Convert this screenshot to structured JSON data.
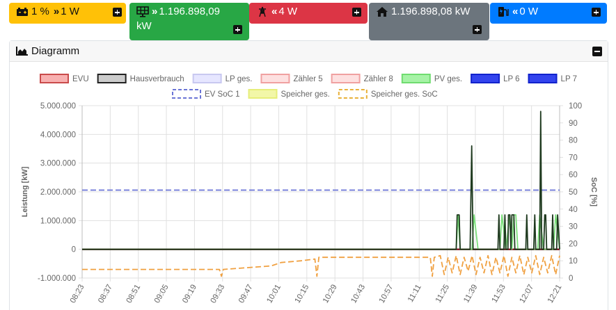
{
  "tiles": {
    "battery": {
      "percent": "1 %",
      "arrow": "»",
      "power": "1 W",
      "icon": "battery-icon",
      "color": "#ffc107"
    },
    "pv": {
      "arrow": "»",
      "line1": "1.196.898,09",
      "line2": "kW",
      "icon": "solar-panel-icon",
      "color": "#28a745"
    },
    "grid": {
      "arrow": "«",
      "value": "4 W",
      "icon": "power-pylon-icon",
      "color": "#dc3545"
    },
    "house": {
      "value": "1.196.898,08 kW",
      "icon": "home-icon",
      "color": "#6c757d"
    },
    "lp": {
      "arrow": "«",
      "value": "0 W",
      "icon": "charging-station-icon",
      "color": "#007bff"
    }
  },
  "card": {
    "title": "Diagramm",
    "icon": "area-chart-icon",
    "collapse_icon": "minus-icon"
  },
  "chart_data": {
    "type": "line",
    "legend": [
      {
        "label": "EVU",
        "style": "box",
        "fill": "#f8b0b0",
        "stroke": "#c94b4b"
      },
      {
        "label": "Hausverbrauch",
        "style": "box",
        "fill": "#cccccc",
        "stroke": "#222222"
      },
      {
        "label": "LP ges.",
        "style": "box",
        "fill": "#e6e6ff",
        "stroke": "#c8c8f0"
      },
      {
        "label": "Zähler 5",
        "style": "box",
        "fill": "#fde0e0",
        "stroke": "#f0a0a0"
      },
      {
        "label": "Zähler 8",
        "style": "box",
        "fill": "#fde0e0",
        "stroke": "#f0a0a0"
      },
      {
        "label": "PV ges.",
        "style": "box",
        "fill": "#a6f3a6",
        "stroke": "#6fdc6f"
      },
      {
        "label": "LP 6",
        "style": "box",
        "fill": "#3344ee",
        "stroke": "#1122cc"
      },
      {
        "label": "LP 7",
        "style": "box",
        "fill": "#3344ee",
        "stroke": "#1122cc"
      },
      {
        "label": "EV SoC 1",
        "style": "dash",
        "fill": "#ffffff",
        "stroke": "#6a74d6"
      },
      {
        "label": "Speicher ges.",
        "style": "box",
        "fill": "#f2f7a8",
        "stroke": "#e6ee7a"
      },
      {
        "label": "Speicher ges. SoC",
        "style": "dash",
        "fill": "#ffffff",
        "stroke": "#e8b13a"
      }
    ],
    "x_ticks": [
      "08:23",
      "08:37",
      "08:51",
      "09:05",
      "09:19",
      "09:33",
      "09:47",
      "10:01",
      "10:15",
      "10:29",
      "10:43",
      "10:57",
      "11:11",
      "11:25",
      "11:39",
      "11:53",
      "12:07",
      "12:21"
    ],
    "x_range_min": [
      0,
      240
    ],
    "y_left": {
      "label": "Leistung [kW]",
      "ticks": [
        "5.000.000",
        "4.000.000",
        "3.000.000",
        "2.000.000",
        "1.000.000",
        "0",
        "-1.000.000"
      ],
      "range": [
        -1000000,
        5000000
      ]
    },
    "y_right": {
      "label": "SoC [%]",
      "ticks": [
        "100",
        "90",
        "80",
        "70",
        "60",
        "50",
        "40",
        "30",
        "20",
        "10",
        "0"
      ],
      "range": [
        0,
        100
      ]
    },
    "series": [
      {
        "name": "EV SoC 1",
        "axis": "right",
        "dashed": true,
        "color": "#6a74d6",
        "points": [
          [
            0,
            51
          ],
          [
            240,
            51
          ]
        ]
      },
      {
        "name": "EVU",
        "axis": "left",
        "color": "#8b1a2b",
        "points": [
          [
            0,
            0
          ],
          [
            240,
            0
          ]
        ]
      },
      {
        "name": "Speicher ges. SoC",
        "axis": "right",
        "dashed": true,
        "color": "#f0a040",
        "points": [
          [
            0,
            5
          ],
          [
            69,
            5
          ],
          [
            70,
            1
          ],
          [
            71,
            5
          ],
          [
            95,
            7
          ],
          [
            100,
            9
          ],
          [
            110,
            10
          ],
          [
            117,
            11
          ],
          [
            118,
            1
          ],
          [
            119,
            12
          ],
          [
            175,
            12
          ],
          [
            176,
            1
          ],
          [
            177,
            12
          ],
          [
            180,
            13
          ],
          [
            182,
            2
          ],
          [
            184,
            12
          ],
          [
            186,
            3
          ],
          [
            188,
            13
          ],
          [
            190,
            2
          ],
          [
            192,
            12
          ],
          [
            194,
            4
          ],
          [
            196,
            13
          ],
          [
            198,
            2
          ],
          [
            200,
            12
          ],
          [
            202,
            3
          ],
          [
            204,
            13
          ],
          [
            206,
            2
          ],
          [
            208,
            12
          ],
          [
            210,
            3
          ],
          [
            212,
            13
          ],
          [
            214,
            1
          ],
          [
            216,
            12
          ],
          [
            218,
            3
          ],
          [
            220,
            13
          ],
          [
            222,
            2
          ],
          [
            224,
            12
          ],
          [
            226,
            3
          ],
          [
            228,
            13
          ],
          [
            230,
            2
          ],
          [
            232,
            12
          ],
          [
            234,
            3
          ],
          [
            236,
            13
          ],
          [
            238,
            2
          ],
          [
            240,
            13
          ]
        ]
      },
      {
        "name": "PV ges.",
        "axis": "left",
        "color": "#7be07b",
        "points": [
          [
            0,
            0
          ],
          [
            188,
            0
          ],
          [
            189,
            1200000
          ],
          [
            190,
            0
          ],
          [
            196,
            0
          ],
          [
            197,
            1200000
          ],
          [
            199,
            0
          ],
          [
            210,
            0
          ],
          [
            211,
            1200000
          ],
          [
            213,
            0
          ],
          [
            215,
            1200000
          ],
          [
            216,
            0
          ],
          [
            217,
            1200000
          ],
          [
            218,
            1200000
          ],
          [
            219,
            0
          ],
          [
            229,
            0
          ],
          [
            230,
            1200000
          ],
          [
            232,
            0
          ],
          [
            237,
            0
          ],
          [
            238,
            1200000
          ],
          [
            240,
            0
          ]
        ]
      },
      {
        "name": "Hausverbrauch",
        "axis": "left",
        "color": "#1f3a1f",
        "points": [
          [
            0,
            0
          ],
          [
            188,
            0
          ],
          [
            188.5,
            1200000
          ],
          [
            189.5,
            1200000
          ],
          [
            190,
            0
          ],
          [
            195,
            0
          ],
          [
            195.8,
            3600000
          ],
          [
            196.5,
            0
          ],
          [
            209,
            0
          ],
          [
            209.5,
            1200000
          ],
          [
            210,
            0
          ],
          [
            212,
            0
          ],
          [
            212.5,
            1200000
          ],
          [
            213,
            0
          ],
          [
            214,
            0
          ],
          [
            214.3,
            1200000
          ],
          [
            215,
            1200000
          ],
          [
            215.5,
            0
          ],
          [
            216,
            1200000
          ],
          [
            217,
            1200000
          ],
          [
            217.5,
            0
          ],
          [
            223,
            0
          ],
          [
            223.5,
            1200000
          ],
          [
            224,
            0
          ],
          [
            227,
            0
          ],
          [
            227.5,
            1200000
          ],
          [
            228,
            0
          ],
          [
            230,
            0
          ],
          [
            230.5,
            4800000
          ],
          [
            231,
            0
          ],
          [
            232,
            0
          ],
          [
            232.5,
            1200000
          ],
          [
            233,
            1200000
          ],
          [
            233.5,
            0
          ],
          [
            236,
            0
          ],
          [
            236.5,
            1200000
          ],
          [
            237,
            0
          ],
          [
            238.5,
            0
          ],
          [
            239,
            1200000
          ],
          [
            240,
            0
          ]
        ]
      }
    ]
  }
}
